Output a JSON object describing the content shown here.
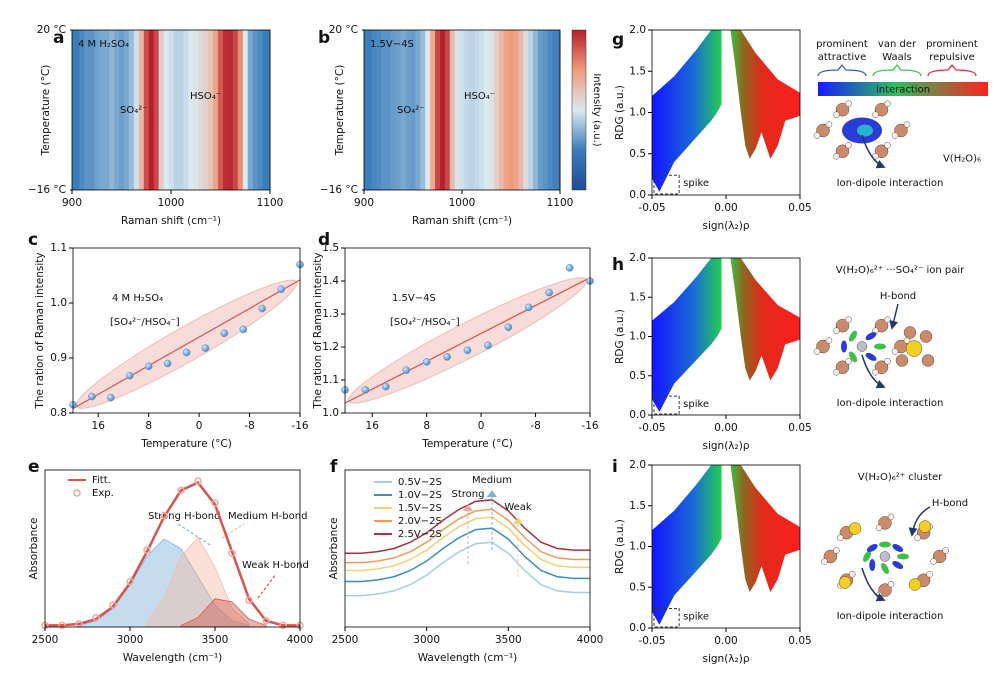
{
  "chart_data": [
    {
      "panel": "a",
      "type": "heatmap",
      "x": [
        900,
        905,
        910,
        915,
        920,
        925,
        930,
        935,
        940,
        945,
        950,
        955,
        960,
        965,
        970,
        975,
        980,
        985,
        990,
        995,
        1000,
        1005,
        1010,
        1015,
        1020,
        1025,
        1030,
        1035,
        1040,
        1045,
        1050,
        1055,
        1060,
        1065,
        1070,
        1075,
        1080,
        1085,
        1090,
        1095,
        1100
      ],
      "values": [
        0.25,
        0.25,
        0.28,
        0.3,
        0.3,
        0.33,
        0.35,
        0.35,
        0.38,
        0.35,
        0.33,
        0.35,
        0.4,
        0.48,
        0.65,
        0.9,
        1,
        0.92,
        0.6,
        0.5,
        0.48,
        0.45,
        0.45,
        0.47,
        0.5,
        0.52,
        0.55,
        0.58,
        0.62,
        0.72,
        0.88,
        0.97,
        0.98,
        0.92,
        0.78,
        0.5,
        0.35,
        0.3,
        0.28,
        0.25,
        0.25
      ],
      "colormap": [
        "#1d4f91",
        "#3b7dbb",
        "#dce9f1",
        "#ef9b7b",
        "#b51f2e"
      ],
      "xlim": [
        900,
        1100
      ],
      "xticks": [
        900,
        1000,
        1100
      ],
      "ylim": [
        -16,
        20
      ],
      "yticks": [
        {
          "value": 20,
          "label": "20 °C"
        },
        {
          "value": -16,
          "label": "−16 °C"
        }
      ],
      "x_label": "Raman shift (cm⁻¹)",
      "y_label": "Temperature (°C)",
      "annotations": [
        "4 M H₂SO₄",
        "HSO₄⁻",
        "SO₄²⁻"
      ]
    },
    {
      "panel": "b",
      "type": "heatmap",
      "x": [
        900,
        905,
        910,
        915,
        920,
        925,
        930,
        935,
        940,
        945,
        950,
        955,
        960,
        965,
        970,
        975,
        980,
        985,
        990,
        995,
        1000,
        1005,
        1010,
        1015,
        1020,
        1025,
        1030,
        1035,
        1040,
        1045,
        1050,
        1055,
        1060,
        1065,
        1070,
        1075,
        1080,
        1085,
        1090,
        1095,
        1100
      ],
      "values": [
        0.25,
        0.25,
        0.27,
        0.28,
        0.3,
        0.3,
        0.32,
        0.33,
        0.35,
        0.33,
        0.32,
        0.35,
        0.4,
        0.5,
        0.7,
        0.92,
        1,
        0.92,
        0.65,
        0.52,
        0.48,
        0.46,
        0.45,
        0.46,
        0.48,
        0.5,
        0.52,
        0.58,
        0.65,
        0.72,
        0.75,
        0.72,
        0.65,
        0.55,
        0.45,
        0.38,
        0.32,
        0.3,
        0.28,
        0.26,
        0.25
      ],
      "colormap": [
        "#1d4f91",
        "#3b7dbb",
        "#dce9f1",
        "#ef9b7b",
        "#b51f2e"
      ],
      "xlim": [
        900,
        1100
      ],
      "xticks": [
        900,
        1000,
        1100
      ],
      "ylim": [
        -16,
        20
      ],
      "yticks": [
        {
          "value": 20,
          "label": "20 °C"
        },
        {
          "value": -16,
          "label": "−16 °C"
        }
      ],
      "x_label": "Raman shift (cm⁻¹)",
      "y_label": "Temperature (°C)",
      "annotations": [
        "1.5V−4S",
        "HSO₄⁻",
        "SO₄²⁻"
      ],
      "colorbar_label": "Intensity (a.u.)"
    },
    {
      "panel": "c",
      "type": "scatter",
      "color": "#5b9bd5",
      "fit_color": "#d9534f",
      "x": [
        20,
        17,
        14,
        11,
        8,
        5,
        2,
        -1,
        -4,
        -7,
        -10,
        -13,
        -16
      ],
      "values": [
        0.815,
        0.83,
        0.828,
        0.868,
        0.885,
        0.89,
        0.91,
        0.918,
        0.945,
        0.952,
        0.99,
        1.025,
        1.07
      ],
      "fit": {
        "x": [
          20,
          -16
        ],
        "values": [
          0.808,
          1.042
        ]
      },
      "xlim": [
        20,
        -16
      ],
      "xticks": [
        16,
        8,
        0,
        -8,
        -16
      ],
      "ylim": [
        0.8,
        1.1
      ],
      "yticks": [
        0.8,
        0.9,
        {
          "value": 1,
          "label": "1.0"
        },
        1.1
      ],
      "x_label": "Temperature (°C)",
      "y_label": "The ration of Raman intensity",
      "annotations": [
        "4 M H₂SO₄",
        "[SO₄²⁻/HSO₄⁻]"
      ]
    },
    {
      "panel": "d",
      "type": "scatter",
      "color": "#5b9bd5",
      "fit_color": "#d9534f",
      "x": [
        20,
        17,
        14,
        11,
        8,
        5,
        2,
        -1,
        -4,
        -7,
        -10,
        -13,
        -16
      ],
      "values": [
        1.07,
        1.07,
        1.08,
        1.13,
        1.155,
        1.17,
        1.19,
        1.205,
        1.26,
        1.32,
        1.365,
        1.44,
        1.4
      ],
      "fit": {
        "x": [
          20,
          -16
        ],
        "values": [
          1.03,
          1.41
        ]
      },
      "xlim": [
        20,
        -16
      ],
      "xticks": [
        16,
        8,
        0,
        -8,
        -16
      ],
      "ylim": [
        1,
        1.5
      ],
      "yticks": [
        {
          "value": 1,
          "label": "1.0"
        },
        1.1,
        1.2,
        1.3,
        1.4,
        1.5
      ],
      "x_label": "Temperature (°C)",
      "y_label": "The ration of Raman intensity",
      "annotations": [
        "1.5V−4S",
        "[SO₄²⁻/HSO₄⁻]"
      ]
    },
    {
      "panel": "e",
      "type": "line",
      "x": [
        2500,
        2600,
        2700,
        2800,
        2900,
        3000,
        3100,
        3200,
        3300,
        3400,
        3500,
        3600,
        3700,
        3800,
        3900,
        4000
      ],
      "series": [
        {
          "name": "Fitt.",
          "color": "#d9534f",
          "style": "line",
          "values": [
            0.01,
            0.01,
            0.02,
            0.05,
            0.13,
            0.28,
            0.48,
            0.7,
            0.87,
            0.92,
            0.78,
            0.48,
            0.18,
            0.04,
            0.01,
            0.01
          ]
        },
        {
          "name": "Exp.",
          "color": "#f0a89e",
          "style": "markers",
          "values": [
            0.01,
            0.01,
            0.02,
            0.06,
            0.14,
            0.29,
            0.49,
            0.71,
            0.87,
            0.93,
            0.79,
            0.47,
            0.17,
            0.04,
            0.01,
            0.01
          ]
        }
      ],
      "peaks": [
        {
          "name": "Strong H-bond",
          "color": "#7fb1dc",
          "x": [
            2700,
            2800,
            2900,
            3000,
            3100,
            3200,
            3300,
            3400,
            3500,
            3600,
            3700
          ],
          "values": [
            0.01,
            0.04,
            0.12,
            0.27,
            0.45,
            0.56,
            0.5,
            0.32,
            0.14,
            0.04,
            0.01
          ]
        },
        {
          "name": "Medium H-bond",
          "color": "#f3bba5",
          "x": [
            3100,
            3200,
            3300,
            3400,
            3500,
            3600,
            3700
          ],
          "values": [
            0.03,
            0.18,
            0.45,
            0.57,
            0.38,
            0.12,
            0.02
          ]
        },
        {
          "name": "Weak H-bond",
          "color": "#cf5a52",
          "x": [
            3300,
            3400,
            3500,
            3600,
            3700,
            3800
          ],
          "values": [
            0.01,
            0.06,
            0.18,
            0.16,
            0.05,
            0.01
          ]
        }
      ],
      "xlim": [
        2500,
        4000
      ],
      "xticks": [
        2500,
        3000,
        3500,
        4000
      ],
      "ylim": [
        0,
        1
      ],
      "yticks": [],
      "x_label": "Wavelength (cm⁻¹)",
      "y_label": "Absorbance",
      "legend": "upper left"
    },
    {
      "panel": "f",
      "type": "line",
      "x": [
        2500,
        2600,
        2700,
        2800,
        2900,
        3000,
        3100,
        3200,
        3300,
        3400,
        3500,
        3600,
        3700,
        3800,
        3900,
        4000
      ],
      "series": [
        {
          "name": "0.5V−2S",
          "color": "#a6cde8",
          "style": "line",
          "values": [
            0.2,
            0.2,
            0.21,
            0.23,
            0.27,
            0.33,
            0.41,
            0.48,
            0.53,
            0.54,
            0.47,
            0.36,
            0.27,
            0.23,
            0.22,
            0.22
          ]
        },
        {
          "name": "1.0V−2S",
          "color": "#3d8cc4",
          "style": "line",
          "values": [
            0.29,
            0.29,
            0.3,
            0.32,
            0.36,
            0.42,
            0.5,
            0.57,
            0.62,
            0.63,
            0.56,
            0.45,
            0.36,
            0.32,
            0.31,
            0.31
          ]
        },
        {
          "name": "1.5V−2S",
          "color": "#f3cf78",
          "style": "line",
          "values": [
            0.36,
            0.36,
            0.37,
            0.39,
            0.43,
            0.49,
            0.57,
            0.64,
            0.69,
            0.7,
            0.63,
            0.52,
            0.43,
            0.39,
            0.38,
            0.38
          ]
        },
        {
          "name": "2.0V−2S",
          "color": "#f09a5a",
          "style": "line",
          "values": [
            0.41,
            0.41,
            0.42,
            0.44,
            0.48,
            0.54,
            0.62,
            0.69,
            0.74,
            0.75,
            0.68,
            0.57,
            0.48,
            0.44,
            0.43,
            0.43
          ]
        },
        {
          "name": "2.5V−2S",
          "color": "#a8323e",
          "style": "line",
          "values": [
            0.47,
            0.47,
            0.48,
            0.5,
            0.54,
            0.6,
            0.68,
            0.75,
            0.8,
            0.81,
            0.74,
            0.63,
            0.54,
            0.5,
            0.49,
            0.49
          ]
        }
      ],
      "xlim": [
        2500,
        4000
      ],
      "xticks": [
        2500,
        3000,
        3500,
        4000
      ],
      "ylim": [
        0,
        1
      ],
      "yticks": [],
      "x_label": "Wavelength (cm⁻¹)",
      "y_label": "Absorbance",
      "legend": "upper left",
      "annotations": [
        "Strong",
        "Medium",
        "Weak"
      ]
    },
    {
      "panel": "g",
      "type": "rdg",
      "xlim": [
        -0.05,
        0.05
      ],
      "xticks": [
        -0.05,
        {
          "value": 0,
          "label": "0.00"
        },
        0.05
      ],
      "ylim": [
        0,
        2
      ],
      "yticks": [
        {
          "value": 0,
          "label": "0.0"
        },
        0.5,
        {
          "value": 1,
          "label": "1.0"
        },
        1.5,
        {
          "value": 2,
          "label": "2.0"
        }
      ],
      "x_label": "sign(λ₂)ρ",
      "y_label": "RDG (a.u.)",
      "spike": "spike",
      "scale_labels": [
        [
          "prominent",
          "attractive"
        ],
        [
          "van der",
          "Waals"
        ],
        [
          "prominent",
          "repulsive"
        ]
      ],
      "scale_title": "interaction",
      "complex_label": "V(H₂O)₆",
      "arrow_label": "Ion-dipole interaction"
    },
    {
      "panel": "h",
      "type": "rdg",
      "xlim": [
        -0.05,
        0.05
      ],
      "xticks": [
        -0.05,
        {
          "value": 0,
          "label": "0.00"
        },
        0.05
      ],
      "ylim": [
        0,
        2
      ],
      "yticks": [
        {
          "value": 0,
          "label": "0.0"
        },
        0.5,
        {
          "value": 1,
          "label": "1.0"
        },
        1.5,
        {
          "value": 2,
          "label": "2.0"
        }
      ],
      "x_label": "sign(λ₂)ρ",
      "y_label": "RDG (a.u.)",
      "spike": "spike",
      "complex_label": "V(H₂O)₆²⁺ ···SO₄²⁻ ion pair",
      "bond_label": "H-bond",
      "arrow_label": "Ion-dipole interaction"
    },
    {
      "panel": "i",
      "type": "rdg",
      "xlim": [
        -0.05,
        0.05
      ],
      "xticks": [
        -0.05,
        {
          "value": 0,
          "label": "0.00"
        },
        0.05
      ],
      "ylim": [
        0,
        2
      ],
      "yticks": [
        {
          "value": 0,
          "label": "0.0"
        },
        0.5,
        {
          "value": 1,
          "label": "1.0"
        },
        1.5,
        {
          "value": 2,
          "label": "2.0"
        }
      ],
      "x_label": "sign(λ₂)ρ",
      "y_label": "RDG (a.u.)",
      "spike": "spike",
      "complex_label": "V(H₂O)₆²⁺ cluster",
      "bond_label": "H-bond",
      "arrow_label": "Ion-dipole interaction"
    }
  ]
}
